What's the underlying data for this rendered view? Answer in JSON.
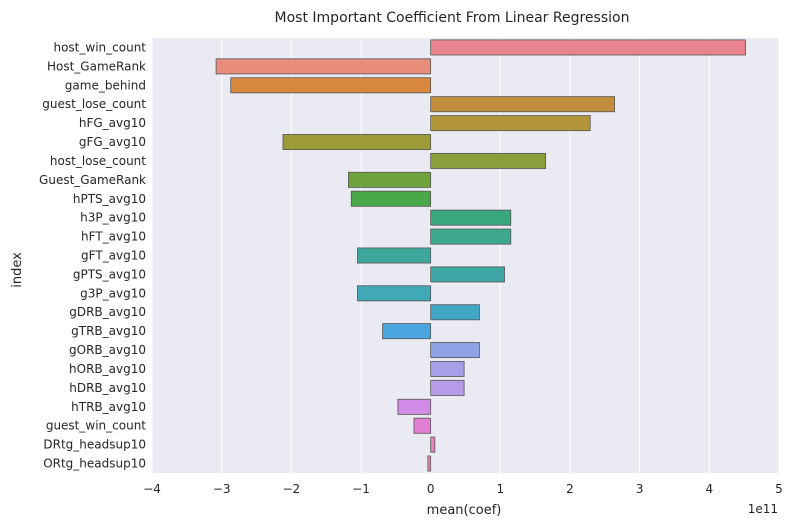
{
  "chart_data": {
    "type": "bar",
    "orientation": "horizontal",
    "title": "Most Important Coefficient From Linear Regression",
    "xlabel": "mean(coef)",
    "ylabel": "index",
    "x_scale_label": "1e11",
    "xlim": [
      -4,
      5
    ],
    "x_ticks": [
      "−4",
      "−3",
      "−2",
      "−1",
      "0",
      "1",
      "2",
      "3",
      "4",
      "5"
    ],
    "grid": true,
    "background": "#eaeaf2",
    "categories": [
      "host_win_count",
      "Host_GameRank",
      "game_behind",
      "guest_lose_count",
      "hFG_avg10",
      "gFG_avg10",
      "host_lose_count",
      "Guest_GameRank",
      "hPTS_avg10",
      "h3P_avg10",
      "hFT_avg10",
      "gFT_avg10",
      "gPTS_avg10",
      "g3P_avg10",
      "gDRB_avg10",
      "gTRB_avg10",
      "gORB_avg10",
      "hORB_avg10",
      "hDRB_avg10",
      "hTRB_avg10",
      "guest_win_count",
      "DRtg_headsup10",
      "ORtg_headsup10"
    ],
    "values": [
      4.52,
      -3.08,
      -2.87,
      2.64,
      2.29,
      -2.12,
      1.65,
      -1.18,
      -1.14,
      1.15,
      1.15,
      -1.05,
      1.06,
      -1.05,
      0.7,
      -0.69,
      0.7,
      0.48,
      0.48,
      -0.47,
      -0.24,
      0.06,
      -0.04
    ],
    "colors": [
      "#e8838d",
      "#e88c7c",
      "#d8893e",
      "#c08e3c",
      "#b3963a",
      "#9e9c3a",
      "#8aa03c",
      "#6ea33d",
      "#4aa849",
      "#3aa87f",
      "#3da88c",
      "#3ea79c",
      "#3ea6a7",
      "#40a8b6",
      "#42a7c4",
      "#4aa4dd",
      "#8ea3e6",
      "#a5a0e8",
      "#b79be8",
      "#d18ae6",
      "#e07fd3",
      "#e384c0",
      "#e58aa6"
    ]
  }
}
